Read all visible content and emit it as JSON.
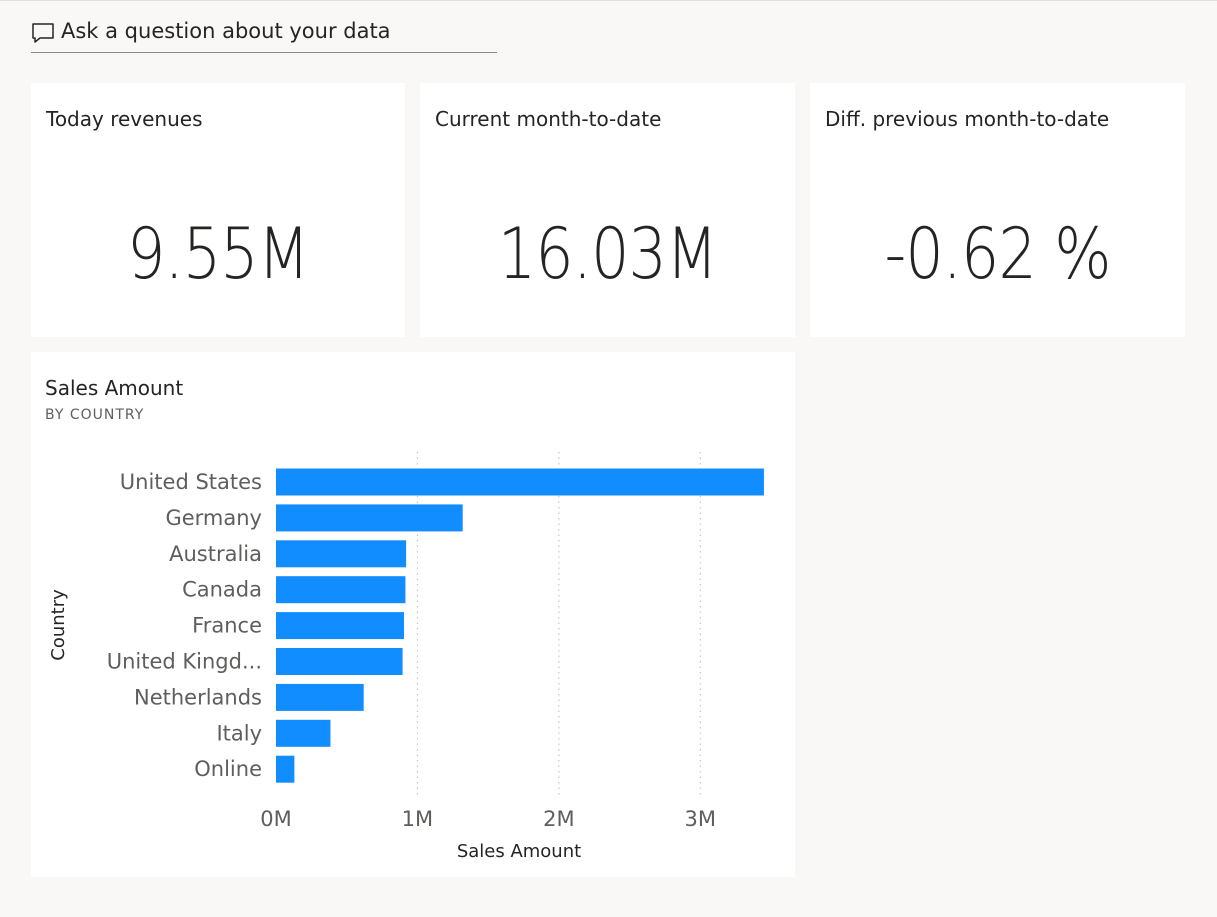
{
  "qa": {
    "label": "Ask a question about your data",
    "icon": "chat-bubble-icon"
  },
  "cards": [
    {
      "title": "Today revenues",
      "value": "9.55M"
    },
    {
      "title": "Current month-to-date",
      "value": "16.03M"
    },
    {
      "title": "Diff. previous month-to-date",
      "value": "-0.62 %"
    }
  ],
  "colors": {
    "bar": "#118dff",
    "background": "#f9f8f7",
    "card": "#ffffff"
  },
  "chart": {
    "title": "Sales Amount",
    "subtitle": "BY COUNTRY"
  },
  "chart_data": {
    "type": "bar",
    "orientation": "horizontal",
    "title": "Sales Amount",
    "subtitle": "BY COUNTRY",
    "xlabel": "Sales Amount",
    "ylabel": "Country",
    "categories": [
      "United States",
      "Germany",
      "Australia",
      "Canada",
      "France",
      "United Kingd...",
      "Netherlands",
      "Italy",
      "Online"
    ],
    "values": [
      3.45,
      1.32,
      0.92,
      0.915,
      0.905,
      0.895,
      0.62,
      0.385,
      0.13
    ],
    "value_unit": "M",
    "xlim": [
      0,
      3.5
    ],
    "xticks": [
      "0M",
      "1M",
      "2M",
      "3M"
    ],
    "xtick_values": [
      0,
      1,
      2,
      3
    ],
    "grid": "vertical dotted"
  }
}
